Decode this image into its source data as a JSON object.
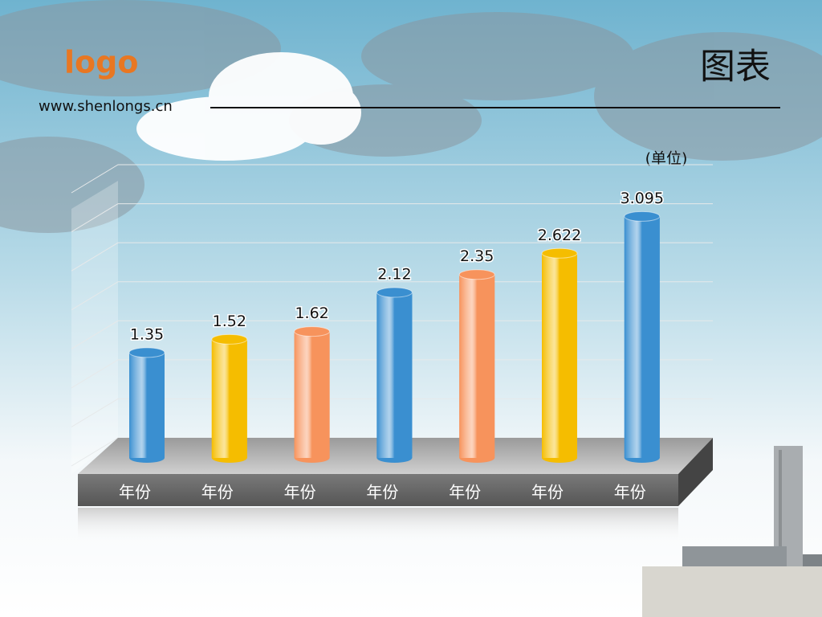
{
  "header": {
    "logo": "logo",
    "url": "www.shenlongs.cn"
  },
  "chart_data": {
    "type": "bar",
    "title": "图表",
    "y_label": "(单位)",
    "categories": [
      "年份",
      "年份",
      "年份",
      "年份",
      "年份",
      "年份",
      "年份"
    ],
    "values": [
      1.35,
      1.52,
      1.62,
      2.12,
      2.35,
      2.622,
      3.095
    ],
    "colors": [
      "#3a8fd0",
      "#f5bd00",
      "#f7935c",
      "#3a8fd0",
      "#f7935c",
      "#f5bd00",
      "#3a8fd0"
    ],
    "ylim": [
      0,
      3.5
    ],
    "yticks": [
      0,
      0.5,
      1,
      1.5,
      2,
      2.5,
      3,
      3.5
    ],
    "grid": true
  }
}
